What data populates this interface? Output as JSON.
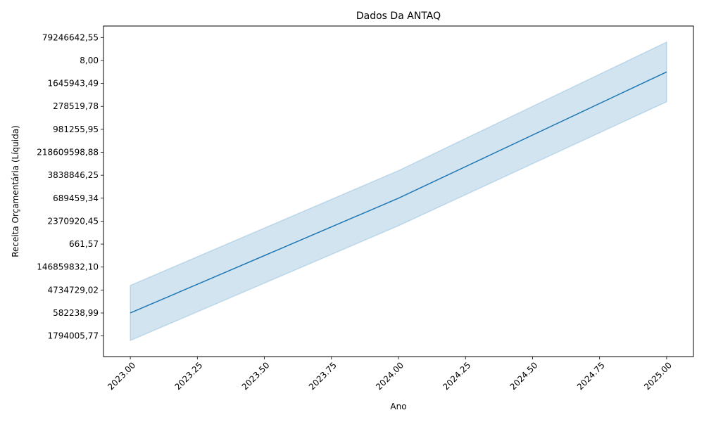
{
  "chart_data": {
    "type": "line",
    "title": "Dados Da ANTAQ",
    "xlabel": "Ano",
    "ylabel": "Receita Orçamentária (Líquida)",
    "x_ticks": [
      "2023.00",
      "2023.25",
      "2023.50",
      "2023.75",
      "2024.00",
      "2024.25",
      "2024.50",
      "2024.75",
      "2025.00"
    ],
    "x_tick_values": [
      2023.0,
      2023.25,
      2023.5,
      2023.75,
      2024.0,
      2024.25,
      2024.5,
      2024.75,
      2025.0
    ],
    "xlim": [
      2022.9,
      2025.1
    ],
    "y_categories": [
      "1794005,77",
      "582238,99",
      "4734729,02",
      "146859832,10",
      "661,57",
      "2370920,45",
      "689459,34",
      "3838846,25",
      "218609598,88",
      "981255,95",
      "278519,78",
      "1645943,49",
      "8,00",
      "79246642,55"
    ],
    "ylim": [
      -0.9,
      13.5
    ],
    "series": [
      {
        "color": "#1f77b4",
        "x": [
          2023.0,
          2024.0,
          2025.0
        ],
        "y": [
          1.0,
          6.0,
          11.5
        ],
        "ci_lower": [
          -0.2,
          4.8,
          10.2
        ],
        "ci_upper": [
          2.2,
          7.2,
          12.8
        ]
      }
    ],
    "grid": false,
    "legend": "none",
    "band_color": "#1f77b4"
  }
}
